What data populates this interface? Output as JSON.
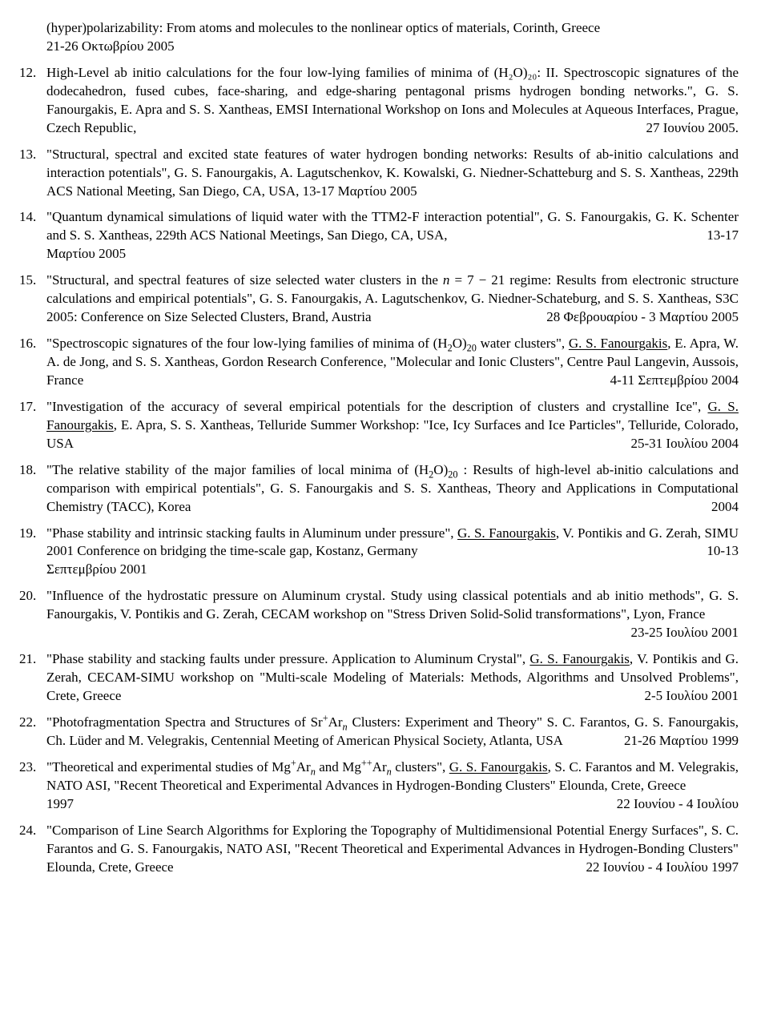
{
  "cont": {
    "text_a": "(hyper)polarizability: From atoms and molecules to the nonlinear optics of materials, Corinth, Greece",
    "text_b": "21-26 Οκτωβρίου 2005"
  },
  "items": [
    {
      "body": "High-Level ab initio calculations for the four low-lying families of minima of (H₂O)₂₀: II. Spectroscopic signatures of the dodecahedron, fused cubes, face-sharing, and edge-sharing pentagonal prisms hydrogen bonding networks.\", G. S. Fanourgakis, E. Apra and S. S. Xantheas, EMSI International Workshop on Ions and Molecules at Aqueous Interfaces, Prague, Czech Republic,",
      "date": "27 Ιουνίου 2005."
    },
    {
      "body": "\"Structural, spectral and excited state features of water hydrogen bonding networks: Results of ab-initio calculations and interaction potentials\", G. S. Fanourgakis, A. Lagutschenkov, K. Kowalski, G. Niedner-Schatteburg and S. S. Xantheas, 229th ACS National Meeting, San Diego, CA, USA, 13-17 Μαρτίου 2005",
      "date": ""
    },
    {
      "body": "\"Quantum dynamical simulations of liquid water with the TTM2-F interaction potential\", G. S. Fanourgakis, G. K. Schenter and S. S. Xantheas, 229th ACS National Meetings, San Diego, CA, USA,",
      "date": "13-17",
      "tail": "Μαρτίου 2005"
    },
    {
      "body_html": "\"Structural, and spectral features of size selected water clusters in the <span class=\"mi\">n</span> = 7 − 21 regime: Results from electronic structure calculations and empirical potentials\", G. S. Fanourgakis, A. Lagutschenkov, G. Niedner-Schateburg, and S. S. Xantheas, S3C 2005: Conference on Size Selected Clusters, Brand, Austria",
      "date": "28 Φεβρουαρίου - 3 Μαρτίου 2005"
    },
    {
      "body_html": "\"Spectroscopic signatures of the four low-lying families of minima of (H<sub>2</sub>O)<sub>20</sub> water clusters\", <span class=\"u\">G. S. Fanourgakis</span>, E. Apra, W. A. de Jong, and S. S. Xantheas, Gordon Research Conference, \"Molecular and Ionic Clusters\", Centre Paul Langevin, Aussois, France",
      "date": "4-11 Σεπτεμβρίου 2004"
    },
    {
      "body_html": "\"Investigation of the accuracy of several empirical potentials for the description of clusters and crystalline Ice\", <span class=\"u\">G. S. Fanourgakis</span>, E. Apra, S. S. Xantheas, Telluride Summer Workshop: \"Ice, Icy Surfaces and Ice Particles\", Telluride, Colorado, USA",
      "date": "25-31 Ιουλίου 2004"
    },
    {
      "body_html": "\"The relative stability of the major families of local minima of (H<sub>2</sub>O)<sub>20</sub> : Results of high-level ab-initio calculations and comparison with empirical potentials\", G. S. Fanourgakis and S. S. Xantheas, Theory and Applications in Computational Chemistry (TACC), Korea",
      "date": "2004"
    },
    {
      "body_html": "\"Phase stability and intrinsic stacking faults in Aluminum under pressure\", <span class=\"u\">G. S. Fanourgakis</span>, V. Pontikis and G. Zerah, SIMU 2001 Conference on bridging the time-scale gap, Kostanz, Germany",
      "date": "10-13",
      "tail": "Σεπτεμβρίου 2001"
    },
    {
      "body": "\"Influence of the hydrostatic pressure on Aluminum crystal. Study using classical potentials and ab initio methods\", G. S. Fanourgakis, V. Pontikis and G. Zerah, CECAM workshop on \"Stress Driven Solid-Solid transformations\", Lyon, France",
      "date": "23-25 Ιουλίου 2001"
    },
    {
      "body_html": "\"Phase stability and stacking faults under pressure. Application to Aluminum Crystal\", <span class=\"u\">G. S. Fanourgakis</span>, V. Pontikis and G. Zerah, CECAM-SIMU workshop on \"Multi-scale Modeling of Materials: Methods, Algorithms and Unsolved Problems\", Crete, Greece",
      "date": "2-5 Ιουλίου 2001"
    },
    {
      "body_html": "\"Photofragmentation Spectra and Structures of Sr<sup>+</sup>Ar<sub><span class=\"mi\">n</span></sub> Clusters: Experiment and Theory\" S. C. Farantos, G. S. Fanourgakis, Ch. Lüder and M. Velegrakis, Centennial Meeting of American Physical Society, Atlanta, USA",
      "date": "21-26 Μαρτίου 1999"
    },
    {
      "body_html": "\"Theoretical and experimental studies of Mg<sup>+</sup>Ar<sub><span class=\"mi\">n</span></sub> and Mg<sup>++</sup>Ar<sub><span class=\"mi\">n</span></sub> clusters\", <span class=\"u\">G. S. Fanourgakis</span>, S. C. Farantos and M. Velegrakis, NATO ASI, \"Recent Theoretical and Experimental Advances in Hydrogen-Bonding Clusters\" Elounda, Crete, Greece",
      "date": "22 Ιουνίου - 4 Ιουλίου",
      "tail": "1997"
    },
    {
      "body": "\"Comparison of Line Search Algorithms for Exploring the Topography of Multidimensional Potential Energy Surfaces\", S. C. Farantos and G. S. Fanourgakis, NATO ASI, \"Recent Theoretical and Experimental Advances in Hydrogen-Bonding Clusters\" Elounda, Crete, Greece",
      "date": "22 Ιουνίου - 4 Ιουλίου 1997"
    }
  ]
}
